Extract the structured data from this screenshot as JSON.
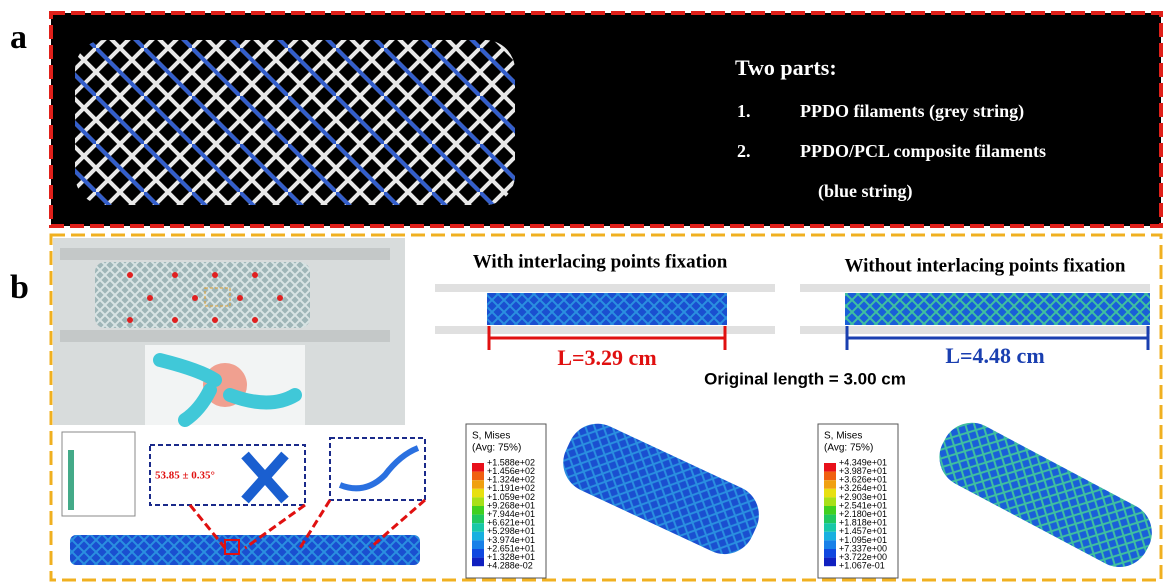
{
  "panel_a": {
    "label": "a",
    "heading": "Two parts:",
    "items": [
      {
        "number": "1.",
        "text": "PPDO filaments (grey string)"
      },
      {
        "number": "2.",
        "text": "PPDO/PCL composite filaments",
        "continuation": "(blue string)"
      }
    ]
  },
  "panel_b": {
    "label": "b",
    "with_title": "With interlacing points fixation",
    "without_title": "Without interlacing points fixation",
    "with_length": "L=3.29 cm",
    "without_length": "L=4.48 cm",
    "original_length": "Original length = 3.00 cm",
    "angle": "53.85 ± 0.35°",
    "legends": [
      {
        "title": "S, Mises",
        "subtitle": "(Avg: 75%)",
        "values": [
          "+1.588e+02",
          "+1.456e+02",
          "+1.324e+02",
          "+1.191e+02",
          "+1.059e+02",
          "+9.268e+01",
          "+7.944e+01",
          "+6.621e+01",
          "+5.298e+01",
          "+3.974e+01",
          "+2.651e+01",
          "+1.328e+01",
          "+4.288e-02"
        ]
      },
      {
        "title": "S, Mises",
        "subtitle": "(Avg: 75%)",
        "values": [
          "+4.349e+01",
          "+3.987e+01",
          "+3.626e+01",
          "+3.264e+01",
          "+2.903e+01",
          "+2.541e+01",
          "+2.180e+01",
          "+1.818e+01",
          "+1.457e+01",
          "+1.095e+01",
          "+7.337e+00",
          "+3.722e+00",
          "+1.067e-01"
        ]
      }
    ]
  }
}
